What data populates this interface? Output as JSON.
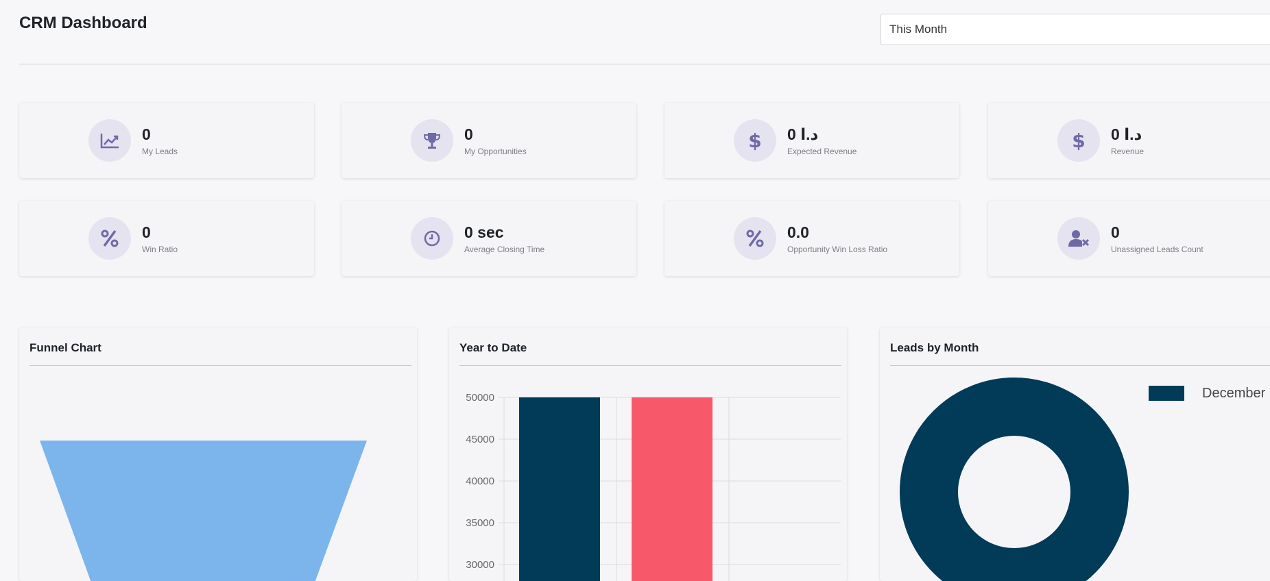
{
  "header": {
    "title": "CRM Dashboard",
    "period": "This Month"
  },
  "kpis": [
    {
      "value": "0",
      "label": "My Leads",
      "icon": "trend-up-icon"
    },
    {
      "value": "0",
      "label": "My Opportunities",
      "icon": "trophy-icon"
    },
    {
      "value": "0 د.ا",
      "label": "Expected Revenue",
      "icon": "dollar-icon"
    },
    {
      "value": "0 د.ا",
      "label": "Revenue",
      "icon": "dollar-icon"
    },
    {
      "value": "0",
      "label": "Win Ratio",
      "icon": "percent-icon"
    },
    {
      "value": "0 sec",
      "label": "Average Closing Time",
      "icon": "clock-icon"
    },
    {
      "value": "0.0",
      "label": "Opportunity Win Loss Ratio",
      "icon": "percent-icon"
    },
    {
      "value": "0",
      "label": "Unassigned Leads Count",
      "icon": "user-x-icon"
    }
  ],
  "panels": {
    "funnel": {
      "title": "Funnel Chart"
    },
    "ytd": {
      "title": "Year to Date"
    },
    "leads": {
      "title": "Leads by Month"
    }
  },
  "colors": {
    "accent_icon": "#6f6aa6",
    "icon_bg": "#e4e3ef",
    "funnel": "#7cb5ec",
    "navy": "#023b58",
    "red": "#f8596a"
  },
  "chart_data": [
    {
      "type": "area",
      "title": "Funnel Chart",
      "note": "funnel",
      "values": []
    },
    {
      "type": "bar",
      "title": "Year to Date",
      "categories": [
        "",
        ""
      ],
      "values": [
        50000,
        50000
      ],
      "colors": [
        "#023b58",
        "#f8596a"
      ],
      "yticks": [
        50000,
        45000,
        40000,
        35000,
        30000
      ],
      "ylim": [
        30000,
        50000
      ],
      "grid": true
    },
    {
      "type": "pie",
      "title": "Leads by Month",
      "categories": [
        "December"
      ],
      "values": [
        1
      ],
      "colors": [
        "#023b58"
      ],
      "legend": "top-right"
    }
  ]
}
